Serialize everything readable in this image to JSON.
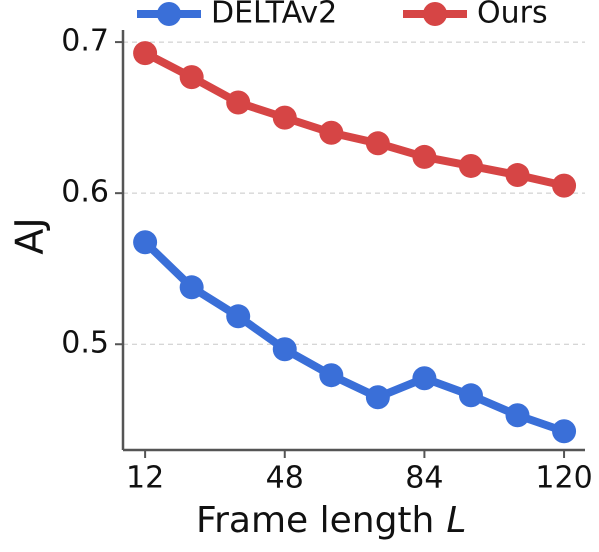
{
  "chart_data": {
    "type": "line",
    "ylabel": "AJ",
    "xlabel": "Frame length",
    "xlabel_var": "L",
    "x": [
      12,
      24,
      36,
      48,
      60,
      72,
      84,
      96,
      108,
      120
    ],
    "series": [
      {
        "name": "DELTAv2",
        "color": "#3a6fd8",
        "values": [
          0.5675,
          0.5377,
          0.5185,
          0.4967,
          0.4795,
          0.4649,
          0.4775,
          0.4662,
          0.453,
          0.4424
        ]
      },
      {
        "name": "Ours",
        "color": "#d64545",
        "values": [
          0.6927,
          0.6768,
          0.66,
          0.65,
          0.64,
          0.633,
          0.624,
          0.618,
          0.612,
          0.605
        ]
      }
    ],
    "xlim": [
      6.3,
      125.4
    ],
    "ylim": [
      0.43,
      0.708
    ],
    "xticks": [
      12,
      48,
      84,
      120
    ],
    "yticks": [
      0.5,
      0.6,
      0.7
    ],
    "grid": true
  }
}
